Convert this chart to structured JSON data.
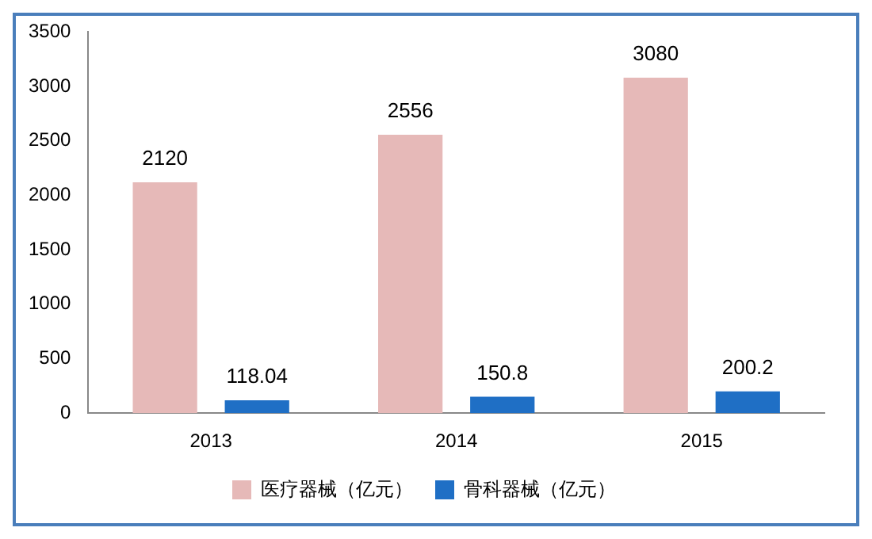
{
  "chart_data": {
    "type": "bar",
    "categories": [
      "2013",
      "2014",
      "2015"
    ],
    "series": [
      {
        "name": "医疗器械（亿元）",
        "color": "#e6b9b8",
        "values": [
          2120,
          2556,
          3080
        ]
      },
      {
        "name": "骨科器械（亿元）",
        "color": "#1f6fc5",
        "values": [
          118.04,
          150.8,
          200.2
        ]
      }
    ],
    "ylim": [
      0,
      3500
    ],
    "yticks": [
      0,
      500,
      1000,
      1500,
      2000,
      2500,
      3000,
      3500
    ],
    "data_labels": true,
    "legend": "bottom",
    "grid": false
  }
}
